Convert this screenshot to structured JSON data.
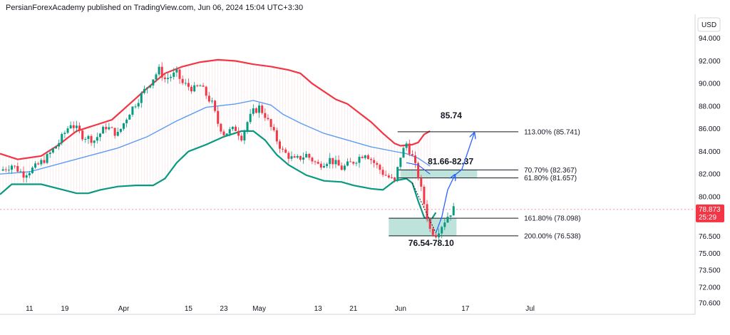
{
  "header": {
    "publisher_line": "PersianForexAcademy published on TradingView.com, Jun 06, 2024 15:04 UTC+3:30"
  },
  "currency_button": "USD",
  "colors": {
    "upper_band": "#f23645",
    "lower_band": "#089981",
    "mid_line": "#5b9cf6",
    "zone_fill": "#a7d9cf",
    "arrow": "#2962ff",
    "candle_up": "#089981",
    "candle_down": "#f23645",
    "price_badge": "#f23645"
  },
  "chart_data": {
    "type": "line",
    "y_axis": {
      "ylim": [
        69.6,
        96.0
      ],
      "ticks": [
        "94.000",
        "92.000",
        "90.000",
        "88.000",
        "86.000",
        "84.000",
        "82.000",
        "80.000",
        "76.500",
        "75.000",
        "73.500",
        "72.000",
        "70.600"
      ]
    },
    "x_axis": {
      "xlim": [
        -5,
        113
      ],
      "ticks": [
        {
          "x": 0,
          "label": "11"
        },
        {
          "x": 6,
          "label": "19"
        },
        {
          "x": 16,
          "label": "Apr"
        },
        {
          "x": 27,
          "label": "15"
        },
        {
          "x": 33,
          "label": "23"
        },
        {
          "x": 39,
          "label": "May"
        },
        {
          "x": 49,
          "label": "13"
        },
        {
          "x": 55,
          "label": "21"
        },
        {
          "x": 63,
          "label": "Jun"
        },
        {
          "x": 74,
          "label": "17"
        },
        {
          "x": 85,
          "label": "Jul"
        }
      ]
    },
    "series": [
      {
        "key": "upper",
        "points": [
          [
            -5,
            83.8
          ],
          [
            -2,
            83.3
          ],
          [
            2,
            83.6
          ],
          [
            5,
            84.6
          ],
          [
            8,
            85.8
          ],
          [
            11,
            86.3
          ],
          [
            14,
            86.8
          ],
          [
            17,
            88.2
          ],
          [
            20,
            89.6
          ],
          [
            23,
            90.9
          ],
          [
            26,
            91.5
          ],
          [
            29,
            91.9
          ],
          [
            32,
            92.1
          ],
          [
            35,
            92.0
          ],
          [
            38,
            91.7
          ],
          [
            41,
            91.5
          ],
          [
            44,
            91.2
          ],
          [
            46,
            90.9
          ],
          [
            48,
            90.0
          ],
          [
            50,
            89.3
          ],
          [
            52,
            88.6
          ],
          [
            54,
            88.2
          ],
          [
            56,
            87.4
          ],
          [
            58,
            86.6
          ],
          [
            60,
            85.6
          ],
          [
            62,
            84.7
          ],
          [
            63,
            84.5
          ],
          [
            65,
            84.6
          ],
          [
            66,
            84.8
          ],
          [
            67,
            85.5
          ],
          [
            68,
            85.8
          ]
        ]
      },
      {
        "key": "mid",
        "points": [
          [
            -5,
            82.0
          ],
          [
            0,
            82.2
          ],
          [
            5,
            82.9
          ],
          [
            10,
            83.6
          ],
          [
            15,
            84.3
          ],
          [
            20,
            85.3
          ],
          [
            25,
            86.7
          ],
          [
            30,
            87.9
          ],
          [
            35,
            88.2
          ],
          [
            38,
            88.5
          ],
          [
            41,
            88.1
          ],
          [
            43,
            87.3
          ],
          [
            46,
            86.5
          ],
          [
            50,
            85.6
          ],
          [
            54,
            85.0
          ],
          [
            58,
            84.4
          ],
          [
            62,
            84.0
          ],
          [
            64,
            83.8
          ],
          [
            66,
            83.4
          ],
          [
            68,
            82.7
          ]
        ]
      },
      {
        "key": "lower",
        "points": [
          [
            -5,
            80.2
          ],
          [
            -3,
            81.1
          ],
          [
            2,
            81.1
          ],
          [
            5,
            80.7
          ],
          [
            8,
            80.3
          ],
          [
            10,
            80.3
          ],
          [
            12,
            80.6
          ],
          [
            15,
            80.9
          ],
          [
            18,
            81.0
          ],
          [
            21,
            81.0
          ],
          [
            23,
            81.6
          ],
          [
            25,
            83.0
          ],
          [
            27,
            84.0
          ],
          [
            30,
            84.6
          ],
          [
            33,
            85.3
          ],
          [
            36,
            85.8
          ],
          [
            38,
            85.8
          ],
          [
            40,
            85.0
          ],
          [
            42,
            83.7
          ],
          [
            44,
            82.8
          ],
          [
            47,
            81.9
          ],
          [
            50,
            81.4
          ],
          [
            53,
            81.3
          ],
          [
            55,
            81.0
          ],
          [
            58,
            80.7
          ],
          [
            60,
            80.6
          ],
          [
            62,
            81.4
          ],
          [
            64,
            81.6
          ],
          [
            65,
            81.2
          ],
          [
            66,
            79.6
          ],
          [
            67,
            78.2
          ],
          [
            68,
            77.8
          ],
          [
            69,
            78.6
          ]
        ]
      },
      {
        "key": "price",
        "points": [
          [
            -5,
            82.3
          ],
          [
            -3,
            82.8
          ],
          [
            -1,
            82.0
          ],
          [
            1,
            82.6
          ],
          [
            3,
            83.5
          ],
          [
            5,
            84.8
          ],
          [
            7,
            86.5
          ],
          [
            9,
            85.4
          ],
          [
            11,
            85.0
          ],
          [
            13,
            86.2
          ],
          [
            15,
            85.5
          ],
          [
            17,
            87.5
          ],
          [
            19,
            89.0
          ],
          [
            21,
            90.5
          ],
          [
            22,
            91.2
          ],
          [
            23,
            90.4
          ],
          [
            25,
            90.9
          ],
          [
            26,
            90.0
          ],
          [
            28,
            89.5
          ],
          [
            29,
            89.8
          ],
          [
            31,
            88.2
          ],
          [
            32,
            86.5
          ],
          [
            33,
            85.6
          ],
          [
            35,
            86.0
          ],
          [
            36,
            85.3
          ],
          [
            37,
            86.6
          ],
          [
            38,
            87.5
          ],
          [
            39,
            87.9
          ],
          [
            40,
            87.2
          ],
          [
            41,
            86.1
          ],
          [
            42,
            85.0
          ],
          [
            43,
            84.0
          ],
          [
            45,
            83.2
          ],
          [
            47,
            83.7
          ],
          [
            49,
            82.8
          ],
          [
            51,
            83.3
          ],
          [
            53,
            82.5
          ],
          [
            55,
            83.1
          ],
          [
            57,
            83.9
          ],
          [
            58,
            83.3
          ],
          [
            60,
            82.1
          ],
          [
            62,
            81.3
          ],
          [
            63,
            83.6
          ],
          [
            64,
            84.7
          ],
          [
            65,
            83.5
          ],
          [
            66,
            81.8
          ],
          [
            67,
            79.4
          ],
          [
            68,
            77.1
          ],
          [
            69,
            76.7
          ],
          [
            70,
            77.5
          ],
          [
            71,
            78.3
          ],
          [
            72,
            78.9
          ]
        ]
      }
    ],
    "current_price": {
      "value": 78.873,
      "label": "78.873",
      "countdown": "25:29",
      "dashed_ref": 78.873
    },
    "fib_levels": [
      {
        "label": "113.00% (85.741)",
        "value": 85.741,
        "x_from": 62.5,
        "x_to": 83
      },
      {
        "label": "70.70% (82.367)",
        "value": 82.367,
        "x_from": 62.5,
        "x_to": 83
      },
      {
        "label": "61.80% (81.657)",
        "value": 81.657,
        "x_from": 62.5,
        "x_to": 83
      },
      {
        "label": "161.80% (78.098)",
        "value": 78.098,
        "x_from": 61,
        "x_to": 83
      },
      {
        "label": "200.00% (76.538)",
        "value": 76.538,
        "x_from": 61,
        "x_to": 83
      }
    ],
    "zones": [
      {
        "label": "81.66-82.37",
        "low": 81.657,
        "high": 82.367,
        "x_from": 63,
        "x_to": 76
      },
      {
        "label": "76.54-78.10",
        "low": 76.538,
        "high": 78.098,
        "x_from": 61,
        "x_to": 72.5
      }
    ],
    "target_label": "85.74",
    "projection_arrow": {
      "points": [
        [
          69,
          76.8
        ],
        [
          70,
          78.2
        ],
        [
          71,
          80.6
        ],
        [
          72.2,
          81.9
        ],
        [
          73.4,
          82.4
        ],
        [
          75.5,
          85.6
        ]
      ]
    },
    "dotted_projection": {
      "points": [
        [
          65,
          81.2
        ],
        [
          67,
          79.0
        ],
        [
          69,
          76.8
        ]
      ]
    }
  }
}
